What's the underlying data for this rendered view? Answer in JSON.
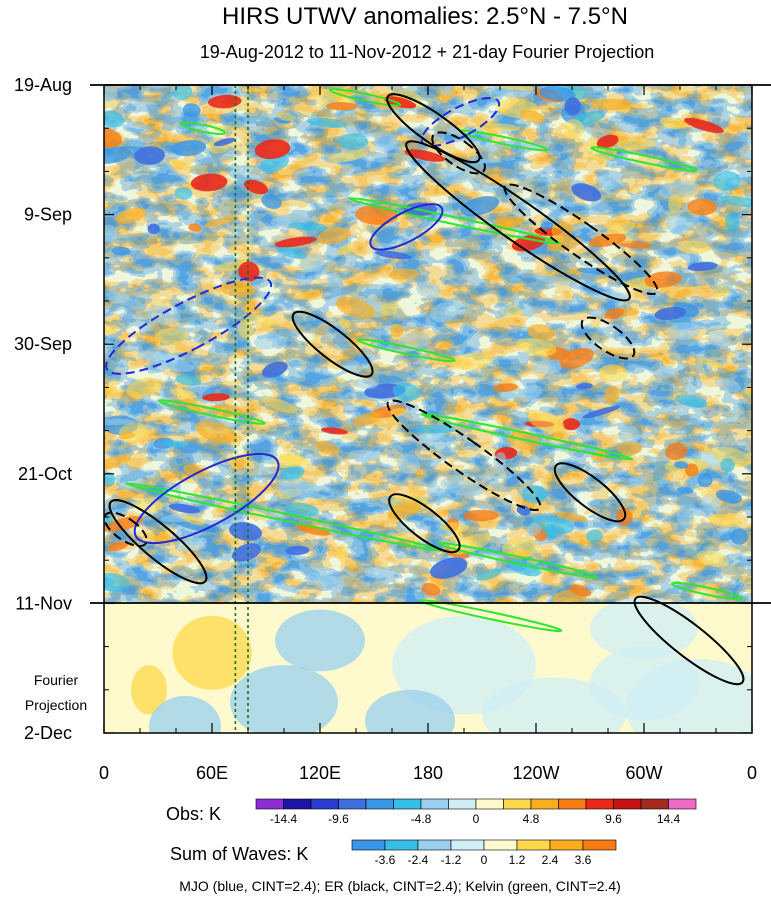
{
  "chart_data": {
    "type": "heatmap",
    "title": "HIRS UTWV anomalies: 2.5°N - 7.5°N",
    "subtitle": "19-Aug-2012 to 11-Nov-2012 + 21-day Fourier Projection",
    "xlabel": "",
    "ylabel": "",
    "x_ticks": [
      {
        "label": "0",
        "lon": 0
      },
      {
        "label": "60E",
        "lon": 60
      },
      {
        "label": "120E",
        "lon": 120
      },
      {
        "label": "180",
        "lon": 180
      },
      {
        "label": "120W",
        "lon": 240
      },
      {
        "label": "60W",
        "lon": 300
      },
      {
        "label": "0",
        "lon": 360
      }
    ],
    "xlim": [
      0,
      360
    ],
    "y_ticks": [
      {
        "label": "19-Aug",
        "day": 0
      },
      {
        "label": "9-Sep",
        "day": 21
      },
      {
        "label": "30-Sep",
        "day": 42
      },
      {
        "label": "21-Oct",
        "day": 63
      },
      {
        "label": "11-Nov",
        "day": 84
      },
      {
        "label": "2-Dec",
        "day": 105
      }
    ],
    "ylim_days": [
      0,
      105
    ],
    "projection_start_day": 84,
    "projection_label_line1": "Fourier",
    "projection_label_line2": "Projection",
    "reference_lines_lon": [
      73,
      80
    ],
    "obs_colorbar": {
      "label": "Obs: K",
      "colors": [
        "#8b2cd6",
        "#1c14a6",
        "#2a3ccf",
        "#3f6fe0",
        "#3a96e6",
        "#36bfe8",
        "#9ad0ef",
        "#cfeef6",
        "#fffacd",
        "#fdd84a",
        "#f9ad1f",
        "#f77b13",
        "#ea2818",
        "#c41212",
        "#a62a1e",
        "#f06cc4"
      ],
      "tick_labels": [
        "-14.4",
        "-9.6",
        "-4.8",
        "0",
        "4.8",
        "9.6",
        "14.4"
      ]
    },
    "waves_colorbar": {
      "label": "Sum of Waves: K",
      "colors": [
        "#3a96e6",
        "#36bfe8",
        "#9ad0ef",
        "#cfeef6",
        "#fffacd",
        "#fdd84a",
        "#f9ad1f",
        "#f77b13"
      ],
      "tick_labels": [
        "-3.6",
        "-2.4",
        "-1.2",
        "0",
        "1.2",
        "2.4",
        "3.6"
      ]
    },
    "footnote": "MJO (blue, CINT=2.4); ER (black, CINT=2.4); Kelvin (green, CINT=2.4)",
    "wave_contours": {
      "mjo_color": "#1f2ad6",
      "er_color": "#000000",
      "kelvin_color": "#2ee62e"
    },
    "mjo_contours": [
      {
        "sign": "neg",
        "lon": 47,
        "day": 39,
        "len_days": 30,
        "wid_lon": 13,
        "angle": 62
      },
      {
        "sign": "pos",
        "lon": 57,
        "day": 67,
        "len_days": 26,
        "wid_lon": 15,
        "angle": 62
      },
      {
        "sign": "neg",
        "lon": 198,
        "day": 6,
        "len_days": 14,
        "wid_lon": 8,
        "angle": 62
      },
      {
        "sign": "pos",
        "lon": 168,
        "day": 23,
        "len_days": 13,
        "wid_lon": 8,
        "angle": 62
      }
    ],
    "er_contours": [
      {
        "sign": "pos",
        "lon": 183,
        "day": 7,
        "len_days": 18,
        "wid_lon": 8,
        "angle": -55
      },
      {
        "sign": "pos",
        "lon": 230,
        "day": 22,
        "len_days": 44,
        "wid_lon": 11,
        "angle": -55
      },
      {
        "sign": "pos",
        "lon": 127,
        "day": 42,
        "len_days": 16,
        "wid_lon": 8,
        "angle": -52
      },
      {
        "sign": "pos",
        "lon": 30,
        "day": 74,
        "len_days": 20,
        "wid_lon": 9,
        "angle": -50
      },
      {
        "sign": "pos",
        "lon": 178,
        "day": 71,
        "len_days": 14,
        "wid_lon": 8,
        "angle": -52
      },
      {
        "sign": "pos",
        "lon": 270,
        "day": 66,
        "len_days": 14,
        "wid_lon": 8,
        "angle": -52
      },
      {
        "sign": "pos",
        "lon": 325,
        "day": 90,
        "len_days": 22,
        "wid_lon": 9,
        "angle": -52
      },
      {
        "sign": "neg",
        "lon": 197,
        "day": 11,
        "len_days": 10,
        "wid_lon": 7,
        "angle": -55
      },
      {
        "sign": "neg",
        "lon": 265,
        "day": 25,
        "len_days": 30,
        "wid_lon": 9,
        "angle": -55
      },
      {
        "sign": "neg",
        "lon": 200,
        "day": 60,
        "len_days": 30,
        "wid_lon": 9,
        "angle": -55
      },
      {
        "sign": "neg",
        "lon": 280,
        "day": 41,
        "len_days": 10,
        "wid_lon": 7,
        "angle": -55
      },
      {
        "sign": "neg",
        "lon": 12,
        "day": 72,
        "len_days": 8,
        "wid_lon": 6,
        "angle": -55
      }
    ],
    "kelvin_contours": [
      {
        "lon": 55,
        "day": 7,
        "len_lon": 25
      },
      {
        "lon": 145,
        "day": 2,
        "len_lon": 40
      },
      {
        "lon": 222,
        "day": 9,
        "len_lon": 50
      },
      {
        "lon": 195,
        "day": 22,
        "len_lon": 120
      },
      {
        "lon": 300,
        "day": 12,
        "len_lon": 60
      },
      {
        "lon": 168,
        "day": 43,
        "len_lon": 55
      },
      {
        "lon": 235,
        "day": 57,
        "len_lon": 120
      },
      {
        "lon": 100,
        "day": 70,
        "len_lon": 180
      },
      {
        "lon": 60,
        "day": 53,
        "len_lon": 60
      },
      {
        "lon": 230,
        "day": 77,
        "len_lon": 90
      },
      {
        "lon": 215,
        "day": 86,
        "len_lon": 80
      },
      {
        "lon": 335,
        "day": 82,
        "len_lon": 40
      }
    ]
  }
}
